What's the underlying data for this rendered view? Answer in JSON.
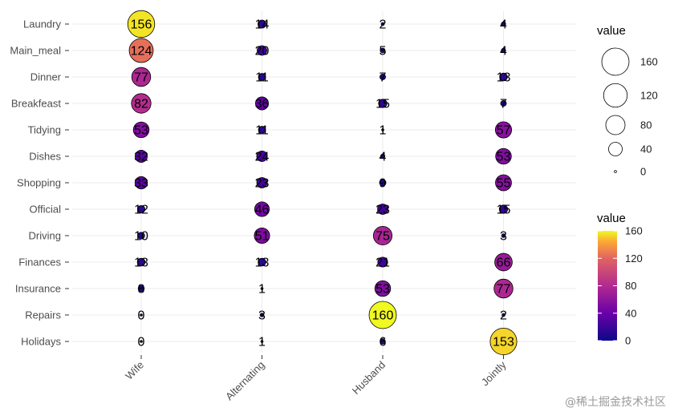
{
  "chart_data": {
    "type": "balloon",
    "title": "",
    "xlabel": "",
    "ylabel": "",
    "rows": [
      "Laundry",
      "Main_meal",
      "Dinner",
      "Breakfeast",
      "Tidying",
      "Dishes",
      "Shopping",
      "Official",
      "Driving",
      "Finances",
      "Insurance",
      "Repairs",
      "Holidays"
    ],
    "columns": [
      "Wife",
      "Alternating",
      "Husband",
      "Jointly"
    ],
    "values": [
      [
        156,
        14,
        2,
        4
      ],
      [
        124,
        20,
        5,
        4
      ],
      [
        77,
        11,
        7,
        13
      ],
      [
        82,
        36,
        15,
        7
      ],
      [
        53,
        11,
        1,
        57
      ],
      [
        32,
        24,
        4,
        53
      ],
      [
        33,
        23,
        9,
        55
      ],
      [
        12,
        46,
        23,
        15
      ],
      [
        10,
        51,
        75,
        3
      ],
      [
        13,
        13,
        21,
        66
      ],
      [
        8,
        1,
        53,
        77
      ],
      [
        0,
        3,
        160,
        2
      ],
      [
        0,
        1,
        6,
        153
      ]
    ],
    "size_legend": {
      "title": "value",
      "breaks": [
        160,
        120,
        80,
        40,
        0
      ]
    },
    "color_legend": {
      "title": "value",
      "breaks": [
        160,
        120,
        80,
        40,
        0
      ],
      "range": [
        0,
        160
      ],
      "palette": "plasma"
    }
  },
  "watermark": "@稀土掘金技术社区"
}
